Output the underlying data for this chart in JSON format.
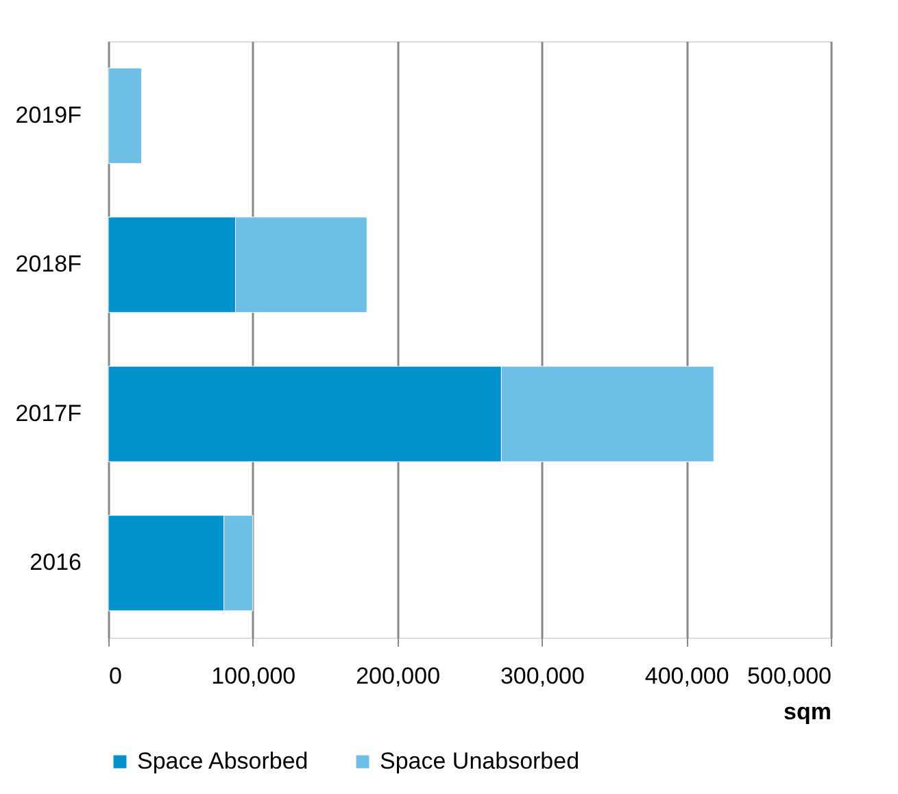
{
  "chart_data": {
    "type": "bar",
    "orientation": "horizontal",
    "stacked": true,
    "categories": [
      "2019F",
      "2018F",
      "2017F",
      "2016"
    ],
    "series": [
      {
        "name": "Space Absorbed",
        "color": "#0293cd",
        "values": [
          null,
          88000,
          272000,
          80000
        ]
      },
      {
        "name": "Space Unabsorbed",
        "color": "#6ebfe6",
        "values": [
          23000,
          91000,
          147000,
          20000
        ]
      }
    ],
    "xlabel": "sqm",
    "xlim": [
      0,
      500000
    ],
    "xticks": [
      0,
      {
        "value": 100000,
        "label": "100,000"
      },
      {
        "value": 200000,
        "label": "200,000"
      },
      {
        "value": 300000,
        "label": "300,000"
      },
      {
        "value": 400000,
        "label": "400,000"
      },
      {
        "value": 500000,
        "label": "500,000"
      }
    ],
    "grid": "x",
    "legend": "bottom"
  }
}
